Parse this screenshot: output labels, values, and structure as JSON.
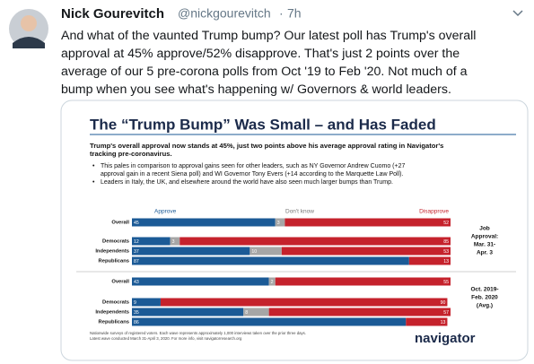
{
  "tweet": {
    "author": "Nick Gourevitch",
    "handle": "@nickgourevitch",
    "separator": "·",
    "time": "7h",
    "text_lines": [
      "And what of the vaunted Trump bump? Our latest poll has Trump's overall",
      "approval at 45% approve/52% disapprove.  That's just 2 points over the",
      "average of our 5 pre-corona polls from Oct '19 to Feb '20. Not much of a",
      "bump when you see what's happening w/ Governors & world leaders."
    ]
  },
  "image": {
    "title": "The “Trump Bump” Was Small – and Has Faded",
    "subtitle_lines": [
      "Trump's overall approval now stands at 45%, just two points above his average approval rating in Navigator's",
      "tracking pre-coronavirus."
    ],
    "bullets": [
      [
        "This pales in comparison to approval gains seen for other leaders, such as NY Governor Andrew Cuomo (+27",
        "approval gain in a recent Siena poll) and WI Governor Tony Evers (+14 according to the Marquette Law Poll)."
      ],
      [
        "Leaders in Italy, the UK, and elsewhere around the world have also seen much larger bumps than Trump."
      ]
    ],
    "legend": {
      "approve": "Approve",
      "dont_know": "Don't know",
      "disapprove": "Disapprove"
    },
    "colors": {
      "approve": "#1b5a96",
      "dont_know": "#a6a6a6",
      "disapprove": "#c5222c"
    },
    "groups": [
      {
        "label_lines": [
          "Job",
          "Approval:",
          "Mar. 31-",
          "Apr. 3"
        ],
        "rows": [
          {
            "name": "Overall",
            "approve": 45,
            "dont_know": 3,
            "disapprove": 52
          },
          {
            "name": "Democrats",
            "approve": 12,
            "dont_know": 3,
            "disapprove": 85
          },
          {
            "name": "Independents",
            "approve": 37,
            "dont_know": 10,
            "disapprove": 53
          },
          {
            "name": "Republicans",
            "approve": 87,
            "dont_know": null,
            "disapprove": 13
          }
        ]
      },
      {
        "label_lines": [
          "Oct. 2019-",
          "Feb. 2020",
          "(Avg.)"
        ],
        "rows": [
          {
            "name": "Overall",
            "approve": 43,
            "dont_know": 2,
            "disapprove": 55
          },
          {
            "name": "Democrats",
            "approve": 9,
            "dont_know": null,
            "disapprove": 90
          },
          {
            "name": "Independents",
            "approve": 35,
            "dont_know": 8,
            "disapprove": 57
          },
          {
            "name": "Republicans",
            "approve": 86,
            "dont_know": null,
            "disapprove": 13
          }
        ]
      }
    ],
    "footnote_lines": [
      "Nationwide surveys of registered voters. Each wave represents approximately 1,000 interviews taken over the prior three days.",
      "Latest wave conducted March 31-April 3, 2020. For more info, visit navigatorresearch.org"
    ],
    "logo": "navigator"
  }
}
